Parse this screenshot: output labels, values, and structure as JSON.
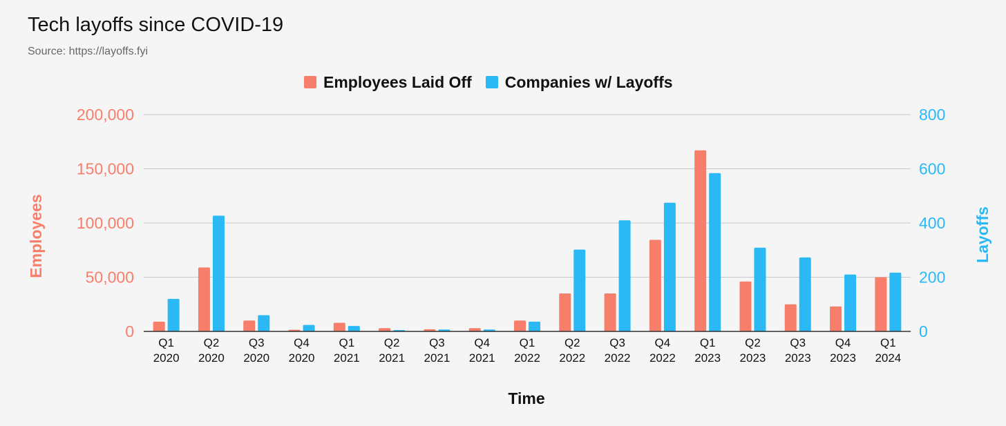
{
  "header": {
    "title": "Tech layoffs since COVID-19",
    "subtitle": "Source: https://layoffs.fyi"
  },
  "colors": {
    "employees": "#f77e6b",
    "companies": "#2ab9f5",
    "grid": "#c8c8c8",
    "axis": "#333333",
    "text": "#111111"
  },
  "chart_data": {
    "type": "bar",
    "title": "Tech layoffs since COVID-19",
    "subtitle": "Source: https://layoffs.fyi",
    "xlabel": "Time",
    "ylabel_left": "Employees",
    "ylabel_right": "Layoffs",
    "legend_position": "top",
    "grid": true,
    "categories": [
      [
        "Q1",
        "2020"
      ],
      [
        "Q2",
        "2020"
      ],
      [
        "Q3",
        "2020"
      ],
      [
        "Q4",
        "2020"
      ],
      [
        "Q1",
        "2021"
      ],
      [
        "Q2",
        "2021"
      ],
      [
        "Q3",
        "2021"
      ],
      [
        "Q4",
        "2021"
      ],
      [
        "Q1",
        "2022"
      ],
      [
        "Q2",
        "2022"
      ],
      [
        "Q3",
        "2022"
      ],
      [
        "Q4",
        "2022"
      ],
      [
        "Q1",
        "2023"
      ],
      [
        "Q2",
        "2023"
      ],
      [
        "Q3",
        "2023"
      ],
      [
        "Q4",
        "2023"
      ],
      [
        "Q1",
        "2024"
      ]
    ],
    "ylim_left": [
      0,
      200000
    ],
    "yticks_left": [
      "0",
      "50,000",
      "100,000",
      "150,000",
      "200,000"
    ],
    "ylim_right": [
      0,
      800
    ],
    "yticks_right": [
      "0",
      "200",
      "400",
      "600",
      "800"
    ],
    "series": [
      {
        "name": "Employees Laid Off",
        "axis": "left",
        "values": [
          9000,
          59000,
          10000,
          1500,
          8000,
          3000,
          2000,
          3000,
          10000,
          35000,
          35000,
          84500,
          167000,
          46000,
          25000,
          23000,
          50000
        ]
      },
      {
        "name": "Companies w/ Layoffs",
        "axis": "right",
        "values": [
          120,
          427,
          60,
          24,
          20,
          5,
          7,
          7,
          36,
          302,
          410,
          475,
          584,
          309,
          273,
          210,
          217
        ]
      }
    ]
  }
}
